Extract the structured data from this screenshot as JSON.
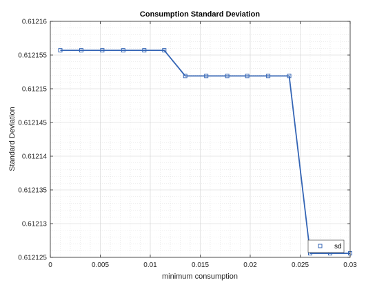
{
  "chart_data": {
    "type": "line",
    "title": "Consumption Standard Deviation",
    "xlabel": "minimum consumption",
    "ylabel": "Standard Deviation",
    "xlim": [
      0,
      0.03
    ],
    "ylim": [
      0.612125,
      0.61216
    ],
    "x_ticks": [
      0,
      0.005,
      0.01,
      0.015,
      0.02,
      0.025,
      0.03
    ],
    "x_tick_labels": [
      "0",
      "0.005",
      "0.01",
      "0.015",
      "0.02",
      "0.025",
      "0.03"
    ],
    "y_ticks": [
      0.612125,
      0.61213,
      0.612135,
      0.61214,
      0.612145,
      0.61215,
      0.612155,
      0.61216
    ],
    "y_tick_labels": [
      "0.612125",
      "0.61213",
      "0.612135",
      "0.61214",
      "0.612145",
      "0.61215",
      "0.612155",
      "0.61216"
    ],
    "grid": true,
    "minor_grid": true,
    "legend_position": "bottom-right",
    "series": [
      {
        "name": "sd",
        "color": "#3465b5",
        "marker": "square",
        "x": [
          0.001,
          0.0031,
          0.0052,
          0.0073,
          0.0094,
          0.0114,
          0.0135,
          0.0156,
          0.0177,
          0.0197,
          0.0218,
          0.0239,
          0.026,
          0.028,
          0.03
        ],
        "y": [
          0.6121557,
          0.6121557,
          0.6121557,
          0.6121557,
          0.6121557,
          0.6121557,
          0.6121519,
          0.6121519,
          0.6121519,
          0.6121519,
          0.6121519,
          0.6121519,
          0.6121256,
          0.6121256,
          0.6121256
        ]
      }
    ]
  }
}
